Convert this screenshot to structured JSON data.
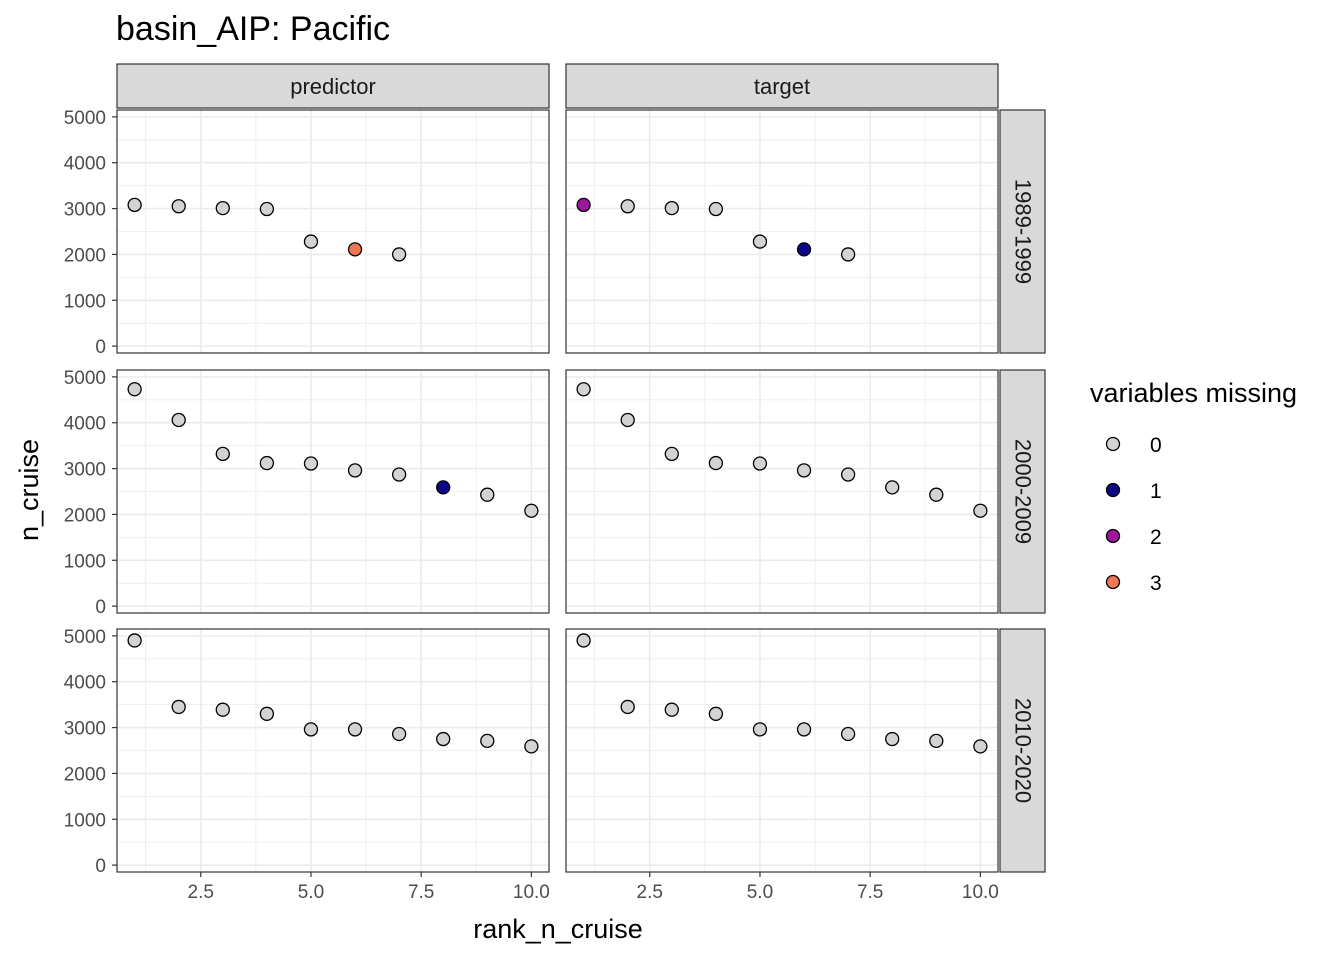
{
  "chart_data": {
    "type": "scatter",
    "title": "basin_AIP: Pacific",
    "xlabel": "rank_n_cruise",
    "ylabel": "n_cruise",
    "xlim": [
      0.6,
      10.4
    ],
    "ylim": [
      -150,
      5150
    ],
    "x_ticks": [
      2.5,
      5.0,
      7.5,
      10.0
    ],
    "x_tick_labels": [
      "2.5",
      "5.0",
      "7.5",
      "10.0"
    ],
    "y_ticks": [
      0,
      1000,
      2000,
      3000,
      4000,
      5000
    ],
    "y_tick_labels": [
      "0",
      "1000",
      "2000",
      "3000",
      "4000",
      "5000"
    ],
    "facet_columns": [
      "predictor",
      "target"
    ],
    "facet_rows": [
      "1989-1999",
      "2000-2009",
      "2010-2020"
    ],
    "legend": {
      "title": "variables missing",
      "entries": [
        {
          "label": "0",
          "color": "#d3d3d3"
        },
        {
          "label": "1",
          "color": "#0d0887"
        },
        {
          "label": "2",
          "color": "#9c179e"
        },
        {
          "label": "3",
          "color": "#ed7953"
        }
      ]
    },
    "panels": [
      {
        "col": "predictor",
        "row": "1989-1999",
        "x": [
          1,
          2,
          3,
          4,
          5,
          6,
          7
        ],
        "y": [
          3080,
          3050,
          3010,
          2990,
          2280,
          2110,
          2000
        ],
        "missing": [
          0,
          0,
          0,
          0,
          0,
          3,
          0
        ]
      },
      {
        "col": "target",
        "row": "1989-1999",
        "x": [
          1,
          2,
          3,
          4,
          5,
          6,
          7
        ],
        "y": [
          3080,
          3050,
          3010,
          2990,
          2280,
          2110,
          2000
        ],
        "missing": [
          2,
          0,
          0,
          0,
          0,
          1,
          0
        ]
      },
      {
        "col": "predictor",
        "row": "2000-2009",
        "x": [
          1,
          2,
          3,
          4,
          5,
          6,
          7,
          8,
          9,
          10
        ],
        "y": [
          4730,
          4060,
          3320,
          3120,
          3110,
          2960,
          2870,
          2590,
          2430,
          2080
        ],
        "missing": [
          0,
          0,
          0,
          0,
          0,
          0,
          0,
          1,
          0,
          0
        ]
      },
      {
        "col": "target",
        "row": "2000-2009",
        "x": [
          1,
          2,
          3,
          4,
          5,
          6,
          7,
          8,
          9,
          10
        ],
        "y": [
          4730,
          4060,
          3320,
          3120,
          3110,
          2960,
          2870,
          2590,
          2430,
          2080
        ],
        "missing": [
          0,
          0,
          0,
          0,
          0,
          0,
          0,
          0,
          0,
          0
        ]
      },
      {
        "col": "predictor",
        "row": "2010-2020",
        "x": [
          1,
          2,
          3,
          4,
          5,
          6,
          7,
          8,
          9,
          10
        ],
        "y": [
          4900,
          3450,
          3390,
          3300,
          2960,
          2960,
          2860,
          2750,
          2710,
          2590
        ],
        "missing": [
          0,
          0,
          0,
          0,
          0,
          0,
          0,
          0,
          0,
          0
        ]
      },
      {
        "col": "target",
        "row": "2010-2020",
        "x": [
          1,
          2,
          3,
          4,
          5,
          6,
          7,
          8,
          9,
          10
        ],
        "y": [
          4900,
          3450,
          3390,
          3300,
          2960,
          2960,
          2860,
          2750,
          2710,
          2590
        ],
        "missing": [
          0,
          0,
          0,
          0,
          0,
          0,
          0,
          0,
          0,
          0
        ]
      }
    ]
  }
}
